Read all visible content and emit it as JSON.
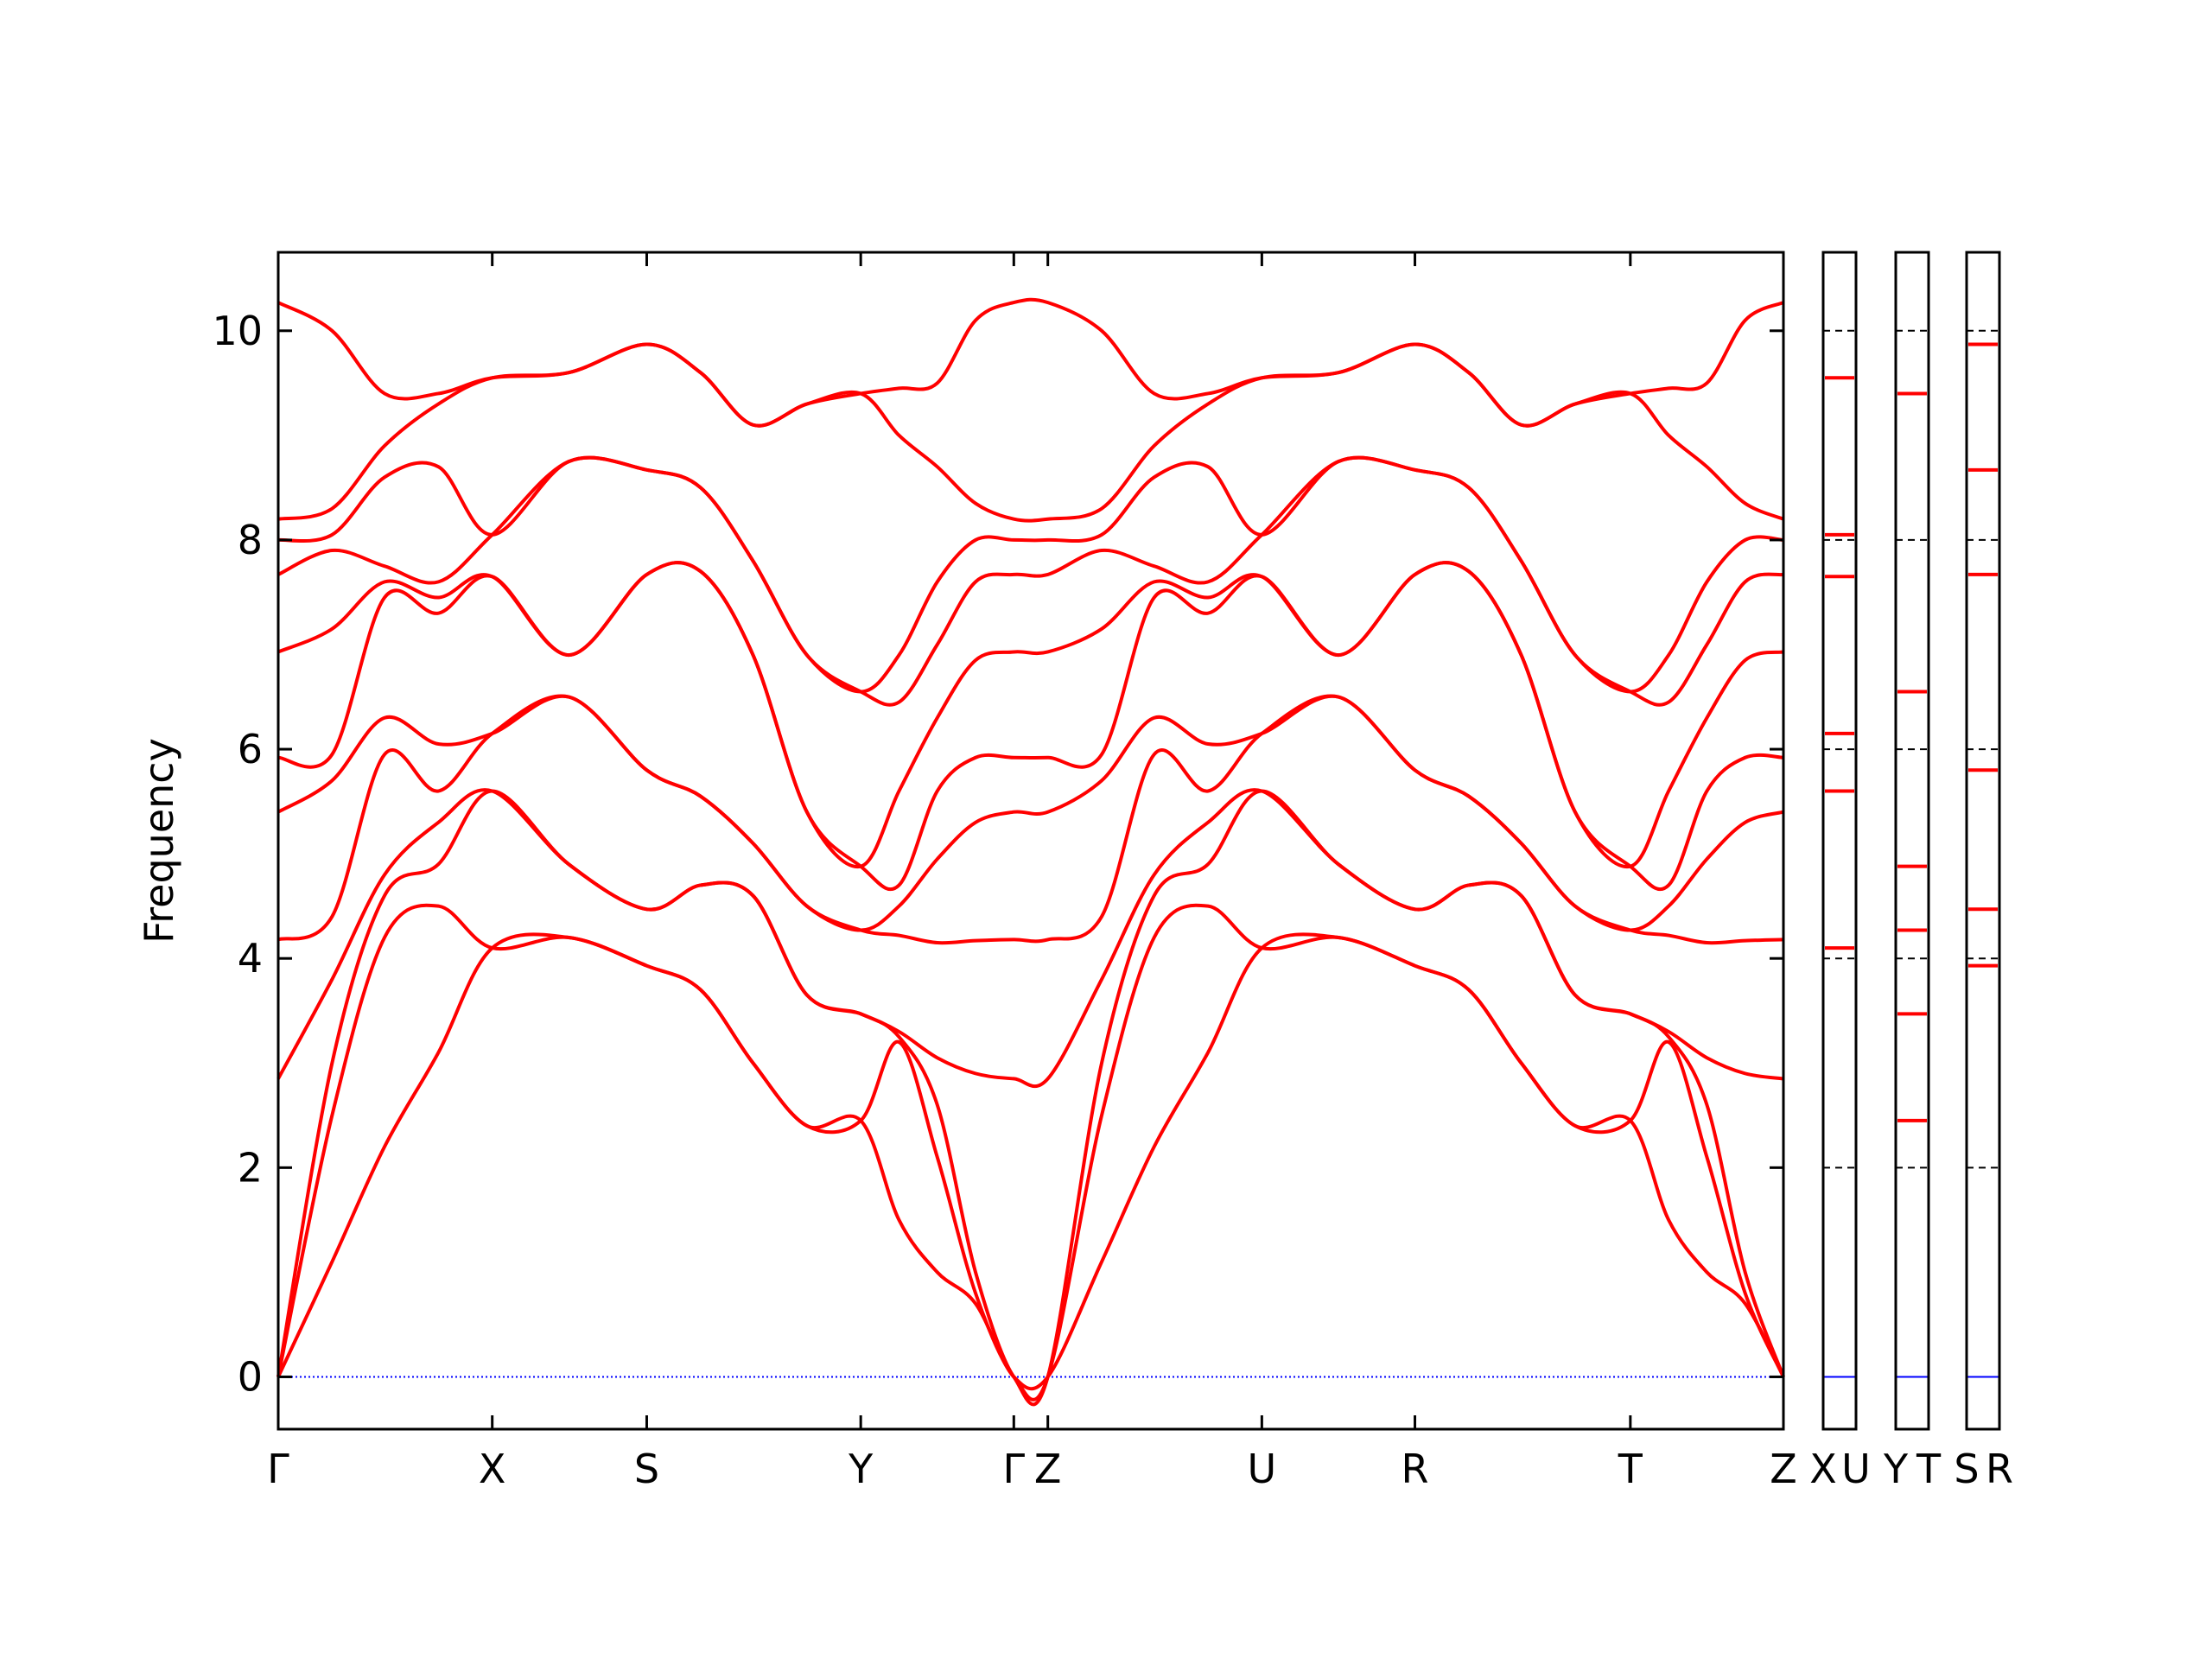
{
  "chart_data": {
    "type": "line",
    "ylabel": "Frequency",
    "color": "#ff0000",
    "zero_line_color": "#0000ff",
    "x": [
      0,
      0.038,
      0.075,
      0.113,
      0.151,
      0.205,
      0.26,
      0.298,
      0.335,
      0.373,
      0.411,
      0.438,
      0.465,
      0.492,
      0.519,
      0.543,
      0.581,
      0.618,
      0.656,
      0.694,
      0.748,
      0.802,
      0.84,
      0.877,
      0.915,
      0.954,
      0.981,
      1.008,
      1.035,
      1.062
    ],
    "xlim": [
      0,
      1.062
    ],
    "xticks": [
      {
        "value": 0,
        "label": "Γ"
      },
      {
        "value": 0.151,
        "label": "X"
      },
      {
        "value": 0.26,
        "label": "S"
      },
      {
        "value": 0.411,
        "label": "Y"
      },
      {
        "value": 0.519,
        "label": "Γ"
      },
      {
        "value": 0.543,
        "label": "Z"
      },
      {
        "value": 0.694,
        "label": "U"
      },
      {
        "value": 0.802,
        "label": "R"
      },
      {
        "value": 0.954,
        "label": "T"
      },
      {
        "value": 1.062,
        "label": "Z"
      }
    ],
    "ylim": [
      -0.5,
      10.75
    ],
    "yticks": [
      0,
      2,
      4,
      6,
      8,
      10
    ],
    "series": [
      {
        "values": [
          0,
          1.1,
          2.2,
          3.1,
          4.1,
          4.2,
          3.93,
          3.7,
          3.0,
          2.4,
          2.45,
          1.5,
          1.0,
          0.7,
          0,
          0,
          1.1,
          2.2,
          3.1,
          4.1,
          4.2,
          3.93,
          3.7,
          3.0,
          2.4,
          2.45,
          1.5,
          1.0,
          0.7,
          0
        ]
      },
      {
        "values": [
          0,
          2.5,
          4.2,
          4.5,
          4.1,
          4.2,
          3.93,
          3.7,
          3.0,
          2.4,
          2.45,
          3.2,
          2.1,
          0.8,
          0,
          0,
          2.5,
          4.2,
          4.5,
          4.1,
          4.2,
          3.93,
          3.7,
          3.0,
          2.4,
          2.45,
          3.2,
          2.1,
          0.8,
          0
        ]
      },
      {
        "values": [
          0,
          3.0,
          4.6,
          4.9,
          5.6,
          4.9,
          4.47,
          4.7,
          4.6,
          3.65,
          3.47,
          3.25,
          2.6,
          1.0,
          0,
          0,
          3.0,
          4.6,
          4.9,
          5.6,
          4.9,
          4.47,
          4.7,
          4.6,
          3.65,
          3.47,
          3.25,
          2.6,
          1.0,
          0
        ]
      },
      {
        "values": [
          2.85,
          3.8,
          4.8,
          5.3,
          5.6,
          4.9,
          4.47,
          4.7,
          4.6,
          3.65,
          3.47,
          3.3,
          3.05,
          2.9,
          2.85,
          2.85,
          3.8,
          4.8,
          5.3,
          5.6,
          4.9,
          4.47,
          4.7,
          4.6,
          3.65,
          3.47,
          3.3,
          3.05,
          2.9,
          2.85
        ]
      },
      {
        "values": [
          4.18,
          4.4,
          5.95,
          5.6,
          6.15,
          6.5,
          5.8,
          5.55,
          5.1,
          4.5,
          4.27,
          4.22,
          4.15,
          4.17,
          4.18,
          4.18,
          4.4,
          5.95,
          5.6,
          6.15,
          6.5,
          5.8,
          5.55,
          5.1,
          4.5,
          4.27,
          4.22,
          4.15,
          4.17,
          4.18
        ]
      },
      {
        "values": [
          5.4,
          5.7,
          6.3,
          6.05,
          6.15,
          6.5,
          5.8,
          5.55,
          5.1,
          4.5,
          4.27,
          4.5,
          4.95,
          5.3,
          5.4,
          5.4,
          5.7,
          6.3,
          6.05,
          6.15,
          6.5,
          5.8,
          5.55,
          5.1,
          4.5,
          4.27,
          4.5,
          4.95,
          5.3,
          5.4
        ]
      },
      {
        "values": [
          5.92,
          5.95,
          7.45,
          7.3,
          7.65,
          6.9,
          7.67,
          7.7,
          6.9,
          5.4,
          4.88,
          4.7,
          5.6,
          5.92,
          5.92,
          5.92,
          5.95,
          7.45,
          7.3,
          7.65,
          6.9,
          7.67,
          7.7,
          6.9,
          5.4,
          4.88,
          4.7,
          5.6,
          5.92,
          5.92
        ]
      },
      {
        "values": [
          6.93,
          7.15,
          7.6,
          7.45,
          7.65,
          6.9,
          7.67,
          7.7,
          6.9,
          5.4,
          4.88,
          5.6,
          6.3,
          6.85,
          6.93,
          6.93,
          7.15,
          7.6,
          7.45,
          7.65,
          6.9,
          7.67,
          7.7,
          6.9,
          5.4,
          4.88,
          5.6,
          6.3,
          6.85,
          6.93
        ]
      },
      {
        "values": [
          7.67,
          7.9,
          7.75,
          7.6,
          8.05,
          8.75,
          8.67,
          8.5,
          7.8,
          6.9,
          6.55,
          6.45,
          7.0,
          7.6,
          7.67,
          7.67,
          7.9,
          7.75,
          7.6,
          8.05,
          8.75,
          8.67,
          8.5,
          7.8,
          6.9,
          6.55,
          6.45,
          7.0,
          7.6,
          7.67
        ]
      },
      {
        "values": [
          8.0,
          8.05,
          8.6,
          8.7,
          8.05,
          8.75,
          8.67,
          8.5,
          7.8,
          6.9,
          6.55,
          6.9,
          7.6,
          8.0,
          8.0,
          8.0,
          8.05,
          8.6,
          8.7,
          8.05,
          8.75,
          8.67,
          8.5,
          7.8,
          6.9,
          6.55,
          6.9,
          7.6,
          8.0,
          8.0
        ]
      },
      {
        "values": [
          8.2,
          8.3,
          8.9,
          9.3,
          9.55,
          9.6,
          9.87,
          9.6,
          9.1,
          9.3,
          9.4,
          9.0,
          8.7,
          8.35,
          8.2,
          8.2,
          8.3,
          8.9,
          9.3,
          9.55,
          9.6,
          9.87,
          9.6,
          9.1,
          9.3,
          9.4,
          9.0,
          8.7,
          8.35,
          8.2
        ]
      },
      {
        "values": [
          10.27,
          10.0,
          9.4,
          9.4,
          9.55,
          9.6,
          9.87,
          9.6,
          9.1,
          9.3,
          9.4,
          9.45,
          9.5,
          10.1,
          10.27,
          10.27,
          10.0,
          9.4,
          9.4,
          9.55,
          9.6,
          9.87,
          9.6,
          9.1,
          9.3,
          9.4,
          9.45,
          9.5,
          10.1,
          10.27
        ]
      }
    ],
    "panels": [
      {
        "labels": [
          "X",
          "U"
        ],
        "values": [
          4.1,
          5.6,
          6.15,
          7.65,
          8.05,
          9.55
        ]
      },
      {
        "labels": [
          "Y",
          "T"
        ],
        "values": [
          2.45,
          3.47,
          4.27,
          4.88,
          6.55,
          9.4
        ]
      },
      {
        "labels": [
          "S",
          "R"
        ],
        "values": [
          3.93,
          4.47,
          5.8,
          7.67,
          8.67,
          9.87
        ]
      }
    ]
  }
}
